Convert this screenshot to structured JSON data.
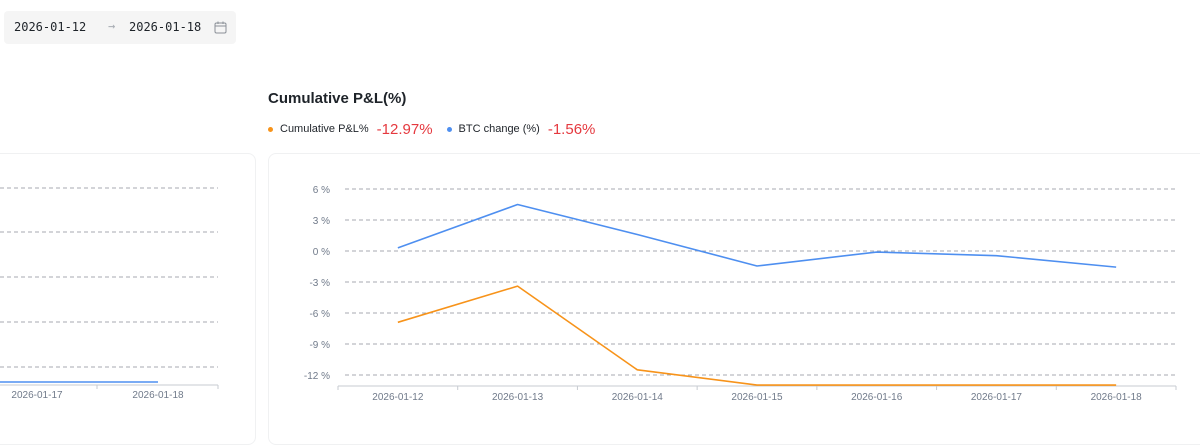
{
  "date_range": {
    "start": "2026-01-12",
    "separator": "→",
    "end": "2026-01-18",
    "icon": "calendar-icon"
  },
  "legend": {
    "items": [
      {
        "label": "Cumulative P&L%",
        "value": "-12.97%",
        "color": "#f7931a",
        "value_color": "#e5393f"
      },
      {
        "label": "BTC change (%)",
        "value": "-1.56%",
        "color": "#4e8ff0",
        "value_color": "#e5393f"
      }
    ]
  },
  "left_chart": {
    "x_tick_labels": [
      "2026-01-17",
      "2026-01-18"
    ],
    "line_color": "#4e8ff0"
  },
  "chart_data": {
    "type": "line",
    "title": "Cumulative P&L(%)",
    "x": [
      "2026-01-12",
      "2026-01-13",
      "2026-01-14",
      "2026-01-15",
      "2026-01-16",
      "2026-01-17",
      "2026-01-18"
    ],
    "y_ticks": [
      6,
      3,
      0,
      -3,
      -6,
      -9,
      -12
    ],
    "y_tick_labels": [
      "6 %",
      "3 %",
      "0 %",
      "-3 %",
      "-6 %",
      "-9 %",
      "-12 %"
    ],
    "ylim": [
      -13,
      6
    ],
    "grid": true,
    "series": [
      {
        "name": "BTC change (%)",
        "color": "#4e8ff0",
        "values": [
          0.3,
          4.5,
          1.6,
          -1.45,
          -0.1,
          -0.45,
          -1.56
        ]
      },
      {
        "name": "Cumulative P&L%",
        "color": "#f7931a",
        "values": [
          -6.9,
          -3.4,
          -11.5,
          -12.97,
          -12.97,
          -12.97,
          -12.97
        ]
      }
    ]
  }
}
